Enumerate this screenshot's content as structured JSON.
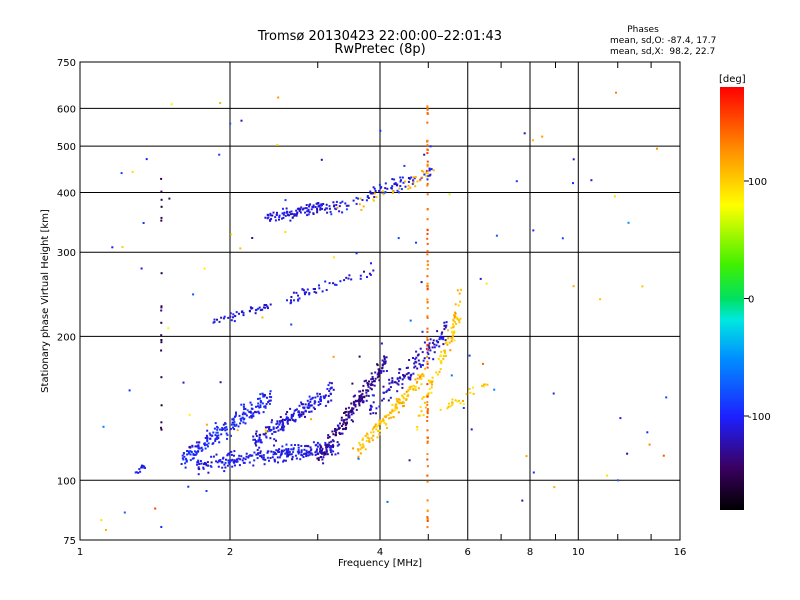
{
  "chart_data": {
    "type": "scatter",
    "title": "Tromsø 20130423 22:00:00–22:01:43",
    "subtitle": "RwPretec (8p)",
    "xlabel": "Frequency [MHz]",
    "ylabel": "Stationary phase Virtual Height [km]",
    "x_scale": "log",
    "y_scale": "log",
    "xlim": [
      1,
      16
    ],
    "ylim": [
      75,
      750
    ],
    "x_ticks": [
      1,
      2,
      4,
      6,
      8,
      10,
      16
    ],
    "x_tick_labels": [
      "1",
      "2",
      "4",
      "6",
      "8",
      "10",
      "16"
    ],
    "y_ticks": [
      75,
      100,
      200,
      300,
      400,
      500,
      600,
      750
    ],
    "y_tick_labels": [
      "75",
      "100",
      "200",
      "300",
      "400",
      "500",
      "600",
      "750"
    ],
    "grid": true,
    "stats": {
      "header": "Phases",
      "line_o": "mean, sd,O: -87.4, 17.7",
      "line_x": "mean, sd,X:  98.2, 22.7"
    },
    "colorbar": {
      "label": "[deg]",
      "range": [
        -180,
        180
      ],
      "ticks": [
        100,
        0,
        -100
      ],
      "tick_labels": [
        "100",
        "0",
        "-100"
      ]
    },
    "traces": [
      {
        "kind": "dense",
        "x_from": 1.7,
        "x_to": 3.3,
        "y_from": 108,
        "y_to": 118,
        "band": 12,
        "phase_mean": -105,
        "count": 260
      },
      {
        "kind": "dense",
        "x_from": 1.6,
        "x_to": 2.4,
        "y_from": 112,
        "y_to": 150,
        "band": 14,
        "phase_mean": -100,
        "count": 200
      },
      {
        "kind": "dense",
        "x_from": 2.2,
        "x_to": 3.2,
        "y_from": 120,
        "y_to": 155,
        "band": 14,
        "phase_mean": -110,
        "count": 180
      },
      {
        "kind": "dense",
        "x_from": 3.0,
        "x_to": 4.1,
        "y_from": 112,
        "y_to": 178,
        "band": 14,
        "phase_mean": -130,
        "count": 220
      },
      {
        "kind": "dense",
        "x_from": 3.6,
        "x_to": 4.9,
        "y_from": 115,
        "y_to": 168,
        "band": 12,
        "phase_mean": 105,
        "count": 140
      },
      {
        "kind": "dense",
        "x_from": 3.8,
        "x_to": 5.4,
        "y_from": 140,
        "y_to": 205,
        "band": 16,
        "phase_mean": -115,
        "count": 130
      },
      {
        "kind": "dense",
        "x_from": 4.7,
        "x_to": 5.8,
        "y_from": 130,
        "y_to": 230,
        "band": 16,
        "phase_mean": 100,
        "count": 70
      },
      {
        "kind": "dense",
        "x_from": 1.85,
        "x_to": 3.9,
        "y_from": 215,
        "y_to": 275,
        "band": 8,
        "phase_mean": -110,
        "count": 90
      },
      {
        "kind": "dense",
        "x_from": 2.35,
        "x_to": 3.1,
        "y_from": 355,
        "y_to": 375,
        "band": 8,
        "phase_mean": -110,
        "count": 100
      },
      {
        "kind": "dense",
        "x_from": 3.1,
        "x_to": 5.1,
        "y_from": 365,
        "y_to": 445,
        "band": 10,
        "phase_mean": -105,
        "count": 90
      },
      {
        "kind": "dense",
        "x_from": 3.6,
        "x_to": 5.1,
        "y_from": 380,
        "y_to": 440,
        "band": 10,
        "phase_mean": 110,
        "count": 30
      },
      {
        "kind": "dense",
        "x_from": 1.28,
        "x_to": 1.35,
        "y_from": 104,
        "y_to": 108,
        "band": 4,
        "phase_mean": -105,
        "count": 18
      },
      {
        "kind": "dense",
        "x_from": 5.5,
        "x_to": 5.75,
        "y_from": 185,
        "y_to": 260,
        "band": 6,
        "phase_mean": 110,
        "count": 22
      },
      {
        "kind": "dense",
        "x_from": 5.2,
        "x_to": 6.6,
        "y_from": 140,
        "y_to": 160,
        "band": 8,
        "phase_mean": 100,
        "count": 25
      },
      {
        "kind": "vline",
        "x": 4.96,
        "y_from": 78,
        "y_to": 670,
        "phase_mean": 140,
        "count": 90
      },
      {
        "kind": "vline",
        "x": 1.45,
        "y_from": 125,
        "y_to": 430,
        "phase_mean": -150,
        "count": 20
      },
      {
        "kind": "scatter",
        "x_from": 1.05,
        "x_to": 15.0,
        "y_from": 78,
        "y_to": 680,
        "phase_mean": 0,
        "phase_spread": 180,
        "count": 110
      }
    ]
  }
}
